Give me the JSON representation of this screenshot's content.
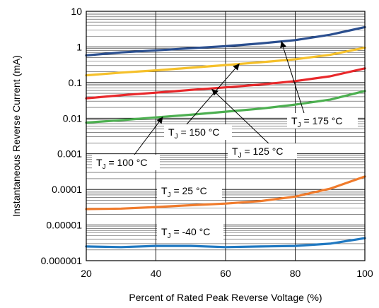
{
  "chart_data": {
    "type": "line",
    "title": "",
    "xlabel": "Percent of Rated Peak Reverse Voltage (%)",
    "ylabel": "Instantaneous Reverse Current (mA)",
    "xlim": [
      20,
      100
    ],
    "ylim": [
      1e-06,
      10
    ],
    "yscale": "log",
    "grid": true,
    "x_ticks": [
      "20",
      "40",
      "60",
      "80",
      "100"
    ],
    "y_ticks": [
      "0.000001",
      "0.00001",
      "0.0001",
      "0.001",
      "0.01",
      "0.1",
      "1",
      "10"
    ],
    "series": [
      {
        "name": "TJ = 175 °C",
        "color": "#2b4f8f",
        "x": [
          20,
          30,
          40,
          50,
          60,
          70,
          80,
          90,
          100
        ],
        "y": [
          0.58,
          0.7,
          0.8,
          0.92,
          1.05,
          1.25,
          1.55,
          2.2,
          3.6
        ]
      },
      {
        "name": "TJ = 150 °C",
        "color": "#f5c02a",
        "x": [
          20,
          30,
          40,
          50,
          60,
          70,
          80,
          90,
          100
        ],
        "y": [
          0.16,
          0.19,
          0.22,
          0.26,
          0.31,
          0.37,
          0.45,
          0.6,
          0.95
        ]
      },
      {
        "name": "TJ = 125 °C",
        "color": "#e8282b",
        "x": [
          20,
          30,
          40,
          50,
          60,
          70,
          80,
          90,
          100
        ],
        "y": [
          0.036,
          0.044,
          0.052,
          0.062,
          0.073,
          0.088,
          0.11,
          0.15,
          0.25
        ]
      },
      {
        "name": "TJ = 100 °C",
        "color": "#4caf50",
        "x": [
          20,
          30,
          40,
          50,
          60,
          70,
          80,
          90,
          100
        ],
        "y": [
          0.0075,
          0.0088,
          0.0105,
          0.0125,
          0.0152,
          0.0185,
          0.024,
          0.033,
          0.058
        ]
      },
      {
        "name": "TJ = 25 °C",
        "color": "#f07b2c",
        "x": [
          20,
          30,
          40,
          50,
          60,
          70,
          80,
          90,
          100
        ],
        "y": [
          2.8e-05,
          2.9e-05,
          3.2e-05,
          3.6e-05,
          4e-05,
          4.7e-05,
          6.3e-05,
          0.000105,
          0.00023
        ]
      },
      {
        "name": "TJ = -40 °C",
        "color": "#1f78c1",
        "x": [
          20,
          30,
          40,
          50,
          60,
          70,
          80,
          90,
          100
        ],
        "y": [
          2.5e-06,
          2.4e-06,
          2.6e-06,
          2.6e-06,
          2.4e-06,
          2.5e-06,
          2.6e-06,
          3e-06,
          4.3e-06
        ]
      }
    ],
    "annotations": [
      {
        "text_main": "T",
        "text_sub": "J",
        "text_rest": " = 175 °C",
        "arrow_to": [
          76,
          1.45
        ]
      },
      {
        "text_main": "T",
        "text_sub": "J",
        "text_rest": " = 150 °C",
        "arrow_to": [
          64,
          0.34
        ]
      },
      {
        "text_main": "T",
        "text_sub": "J",
        "text_rest": " = 125 °C",
        "arrow_to": [
          56,
          0.066
        ]
      },
      {
        "text_main": "T",
        "text_sub": "J",
        "text_rest": " = 100 °C",
        "arrow_to": [
          42,
          0.0109
        ]
      },
      {
        "text_main": "T",
        "text_sub": "J",
        "text_rest": " = 25 °C"
      },
      {
        "text_main": "T",
        "text_sub": "J",
        "text_rest": " = -40 °C"
      }
    ]
  }
}
